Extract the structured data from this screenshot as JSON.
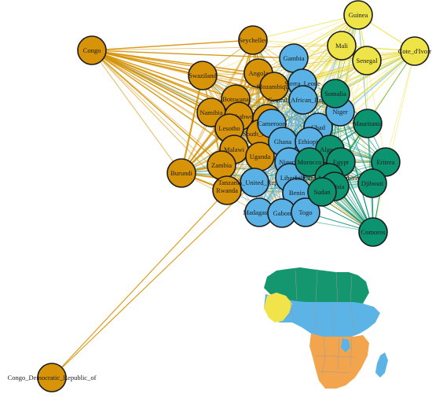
{
  "colors": {
    "orange": "#D89408",
    "blue": "#5AB1E6",
    "green": "#0C9470",
    "yellow": "#EEE447",
    "map_orange": "#F3A54E",
    "map_blue": "#5CB3E6",
    "map_green": "#14966F",
    "map_yellow": "#F1E34A"
  },
  "clusters": {
    "orange": [
      "Seychelles",
      "Congo",
      "Swaziland",
      "Angola",
      "Mozambique",
      "Botswana",
      "Namibia",
      "Zimbabwe",
      "Kenya",
      "Lesotho",
      "South_Africa",
      "Malawi",
      "Uganda",
      "Zambia",
      "Burundi",
      "Rwanda",
      "Congo_Democratic_Republic_of"
    ],
    "blue": [
      "Gambia",
      "Sierra_Leone",
      "Central_African_Republic",
      "Cameroon",
      "Chad",
      "Ghana",
      "Ethiopia",
      "Nigeria",
      "Niger",
      "Tanzania_United_Republic_of",
      "Liberia",
      "Benin",
      "Madagascar",
      "Gabon",
      "Togo"
    ],
    "green": [
      "Somalia",
      "Mauritania",
      "Algeria",
      "Morocco",
      "Egypt",
      "Eritrea",
      "Libyan_Arab_Jamahiriya",
      "Tunisia",
      "Djibouti",
      "Sudan",
      "Comoros"
    ],
    "yellow": [
      "Guinea",
      "Mali",
      "Senegal",
      "Cote_d'Ivoire"
    ]
  },
  "nodes": [
    {
      "id": "Guinea",
      "label": "Guinea",
      "group": "yellow"
    },
    {
      "id": "Mali",
      "label": "Mali",
      "group": "yellow"
    },
    {
      "id": "Senegal",
      "label": "Senegal",
      "group": "yellow"
    },
    {
      "id": "Cote",
      "label": "Cote_d'Ivoir",
      "group": "yellow"
    },
    {
      "id": "Congo",
      "label": "Congo",
      "group": "orange"
    },
    {
      "id": "Seychelles",
      "label": "Seychelles",
      "group": "orange"
    },
    {
      "id": "Swaziland",
      "label": "Swaziland",
      "group": "orange"
    },
    {
      "id": "Angola",
      "label": "Angola",
      "group": "orange"
    },
    {
      "id": "Mozambique",
      "label": "Mozambique",
      "group": "orange"
    },
    {
      "id": "Botswana",
      "label": "Botswana",
      "group": "orange"
    },
    {
      "id": "Namibia",
      "label": "Namibia",
      "group": "orange"
    },
    {
      "id": "Zimbabwe",
      "label": "Zimbabwe",
      "group": "orange"
    },
    {
      "id": "Kenya",
      "label": "Kenya",
      "group": "orange"
    },
    {
      "id": "Lesotho",
      "label": "Lesotho",
      "group": "orange"
    },
    {
      "id": "SouthAfrica",
      "label": "South_Africa",
      "group": "orange"
    },
    {
      "id": "Malawi",
      "label": "Malawi",
      "group": "orange"
    },
    {
      "id": "Uganda",
      "label": "Uganda",
      "group": "orange"
    },
    {
      "id": "Zambia",
      "label": "Zambia",
      "group": "orange"
    },
    {
      "id": "Burundi",
      "label": "Burundi",
      "group": "orange"
    },
    {
      "id": "Rwanda",
      "label": "Rwanda",
      "group": "orange"
    },
    {
      "id": "CongoDR",
      "label": "Congo_Democratic_Republic_of",
      "group": "orange"
    },
    {
      "id": "Gambia",
      "label": "Gambia",
      "group": "blue"
    },
    {
      "id": "SierraLeone",
      "label": "Sierra_Leone",
      "group": "blue"
    },
    {
      "id": "CAR",
      "label": "Central_African_Republic",
      "group": "blue"
    },
    {
      "id": "Cameroon",
      "label": "Cameroon",
      "group": "blue"
    },
    {
      "id": "Chad",
      "label": "Chad",
      "group": "blue"
    },
    {
      "id": "Ghana",
      "label": "Ghana",
      "group": "blue"
    },
    {
      "id": "Ethiopia",
      "label": "Ethiopia",
      "group": "blue"
    },
    {
      "id": "Niger",
      "label": "Niger",
      "group": "blue"
    },
    {
      "id": "Nigeria",
      "label": "Nigeria",
      "group": "blue"
    },
    {
      "id": "Tanzania",
      "label": "Tanzania_United_Republic",
      "group": "blue"
    },
    {
      "id": "Liberia",
      "label": "Liberia",
      "group": "blue"
    },
    {
      "id": "Benin",
      "label": "Benin",
      "group": "blue"
    },
    {
      "id": "Madagascar",
      "label": "Madagascar",
      "group": "blue"
    },
    {
      "id": "Gabon",
      "label": "Gabon",
      "group": "blue"
    },
    {
      "id": "Togo",
      "label": "Togo",
      "group": "blue"
    },
    {
      "id": "Somalia",
      "label": "Somalia",
      "group": "green"
    },
    {
      "id": "Mauritania",
      "label": "Mauritania",
      "group": "green"
    },
    {
      "id": "Algeria",
      "label": "Algeria",
      "group": "green"
    },
    {
      "id": "Morocco",
      "label": "Morocco",
      "group": "green"
    },
    {
      "id": "Egypt",
      "label": "Egypt",
      "group": "green"
    },
    {
      "id": "Eritrea",
      "label": "Eritrea",
      "group": "green"
    },
    {
      "id": "Libya",
      "label": "Libyan_Arab_Jamahiriya",
      "group": "green"
    },
    {
      "id": "Tunisia",
      "label": "Tunisia",
      "group": "green"
    },
    {
      "id": "Djibouti",
      "label": "Djibouti",
      "group": "green"
    },
    {
      "id": "Sudan",
      "label": "Sudan",
      "group": "green"
    },
    {
      "id": "Comoros",
      "label": "Comoros",
      "group": "green"
    }
  ]
}
